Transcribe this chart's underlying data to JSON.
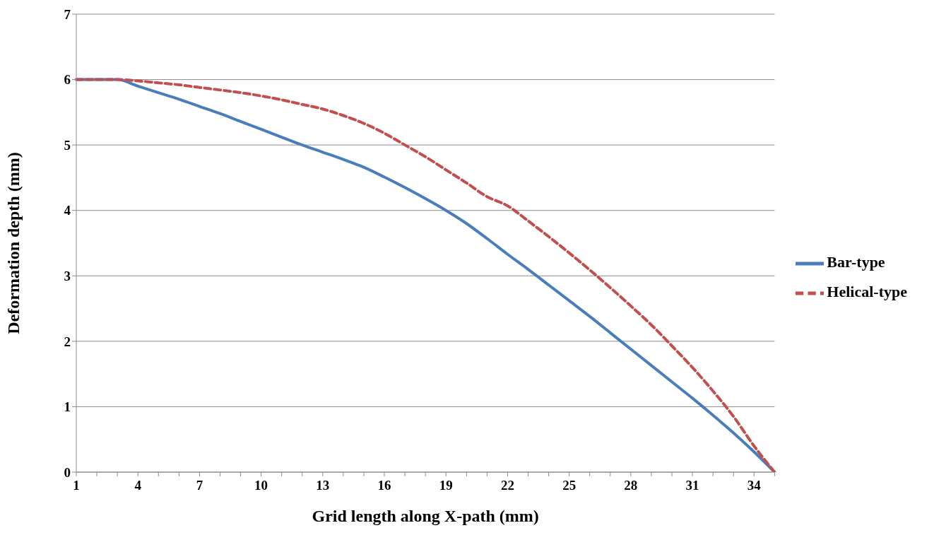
{
  "chart_data": {
    "type": "line",
    "xlabel": "Grid length along X-path (mm)",
    "ylabel": "Deformation depth (mm)",
    "categories": [
      "1",
      null,
      null,
      "4",
      null,
      null,
      "7",
      null,
      null,
      "10",
      null,
      null,
      "13",
      null,
      null,
      "16",
      null,
      null,
      "19",
      null,
      null,
      "22",
      null,
      null,
      "25",
      null,
      null,
      "28",
      null,
      null,
      "31",
      null,
      null,
      "34",
      null
    ],
    "series": [
      {
        "name": "Bar-type",
        "color": "#4a7ebb",
        "line_style": "solid",
        "values": [
          6,
          6,
          6,
          5.9,
          5.8,
          5.7,
          5.59,
          5.48,
          5.36,
          5.24,
          5.12,
          5.0,
          4.89,
          4.78,
          4.66,
          4.51,
          4.35,
          4.18,
          4.0,
          3.8,
          3.57,
          3.33,
          3.1,
          2.86,
          2.62,
          2.38,
          2.13,
          1.88,
          1.63,
          1.38,
          1.13,
          0.87,
          0.6,
          0.31,
          0
        ]
      },
      {
        "name": "Helical-type",
        "color": "#c0504d",
        "line_style": "dashed",
        "values": [
          6,
          6,
          6,
          5.98,
          5.95,
          5.92,
          5.88,
          5.84,
          5.8,
          5.75,
          5.69,
          5.62,
          5.55,
          5.45,
          5.33,
          5.18,
          5.0,
          4.82,
          4.62,
          4.42,
          4.21,
          4.07,
          3.84,
          3.6,
          3.35,
          3.09,
          2.82,
          2.54,
          2.25,
          1.93,
          1.6,
          1.24,
          0.85,
          0.4,
          0
        ]
      }
    ],
    "ylim": [
      0,
      7
    ],
    "yticks": [
      0,
      1,
      2,
      3,
      4,
      5,
      6,
      7
    ],
    "grid": "y",
    "legend": "right",
    "marker": "none"
  }
}
